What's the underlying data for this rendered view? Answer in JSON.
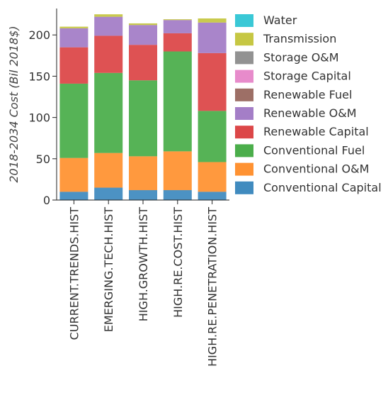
{
  "chart_data": {
    "type": "bar",
    "stacked": true,
    "categories": [
      "CURRENT.TRENDS.HIST",
      "EMERGING.TECH.HIST",
      "HIGH.GROWTH.HIST",
      "HIGH.RE.COST.HIST",
      "HIGH.RE.PENETRATION.HIST"
    ],
    "series": [
      {
        "name": "Conventional Capital",
        "color": "#1f77b4",
        "values": [
          10,
          15,
          12,
          12,
          10
        ]
      },
      {
        "name": "Conventional O&M",
        "color": "#ff7f0e",
        "values": [
          41,
          42,
          41,
          47,
          36
        ]
      },
      {
        "name": "Conventional Fuel",
        "color": "#2ca02c",
        "values": [
          90,
          97,
          92,
          121,
          62
        ]
      },
      {
        "name": "Renewable Capital",
        "color": "#d62728",
        "values": [
          44,
          45,
          43,
          22,
          70
        ]
      },
      {
        "name": "Renewable O&M",
        "color": "#9467bd",
        "values": [
          23,
          23,
          24,
          16,
          37
        ]
      },
      {
        "name": "Renewable Fuel",
        "color": "#8c564b",
        "values": [
          0,
          0,
          0,
          0,
          0
        ]
      },
      {
        "name": "Storage Capital",
        "color": "#e377c2",
        "values": [
          0,
          0,
          0,
          0,
          0
        ]
      },
      {
        "name": "Storage O&M",
        "color": "#7f7f7f",
        "values": [
          0,
          0,
          0,
          0,
          0
        ]
      },
      {
        "name": "Transmission",
        "color": "#bcbd22",
        "values": [
          2,
          3,
          2,
          1,
          5
        ]
      },
      {
        "name": "Water",
        "color": "#17becf",
        "values": [
          0,
          0,
          0,
          0,
          0
        ]
      }
    ],
    "legend_order": [
      "Water",
      "Transmission",
      "Storage O&M",
      "Storage Capital",
      "Renewable Fuel",
      "Renewable O&M",
      "Renewable Capital",
      "Conventional Fuel",
      "Conventional O&M",
      "Conventional Capital"
    ],
    "ylabel": "2018-2034 Cost (Bil 2018$)",
    "xlabel": "",
    "ylim": [
      0,
      232
    ],
    "yticks": [
      0,
      50,
      100,
      150,
      200
    ],
    "legend_position": "right",
    "grid": false
  }
}
